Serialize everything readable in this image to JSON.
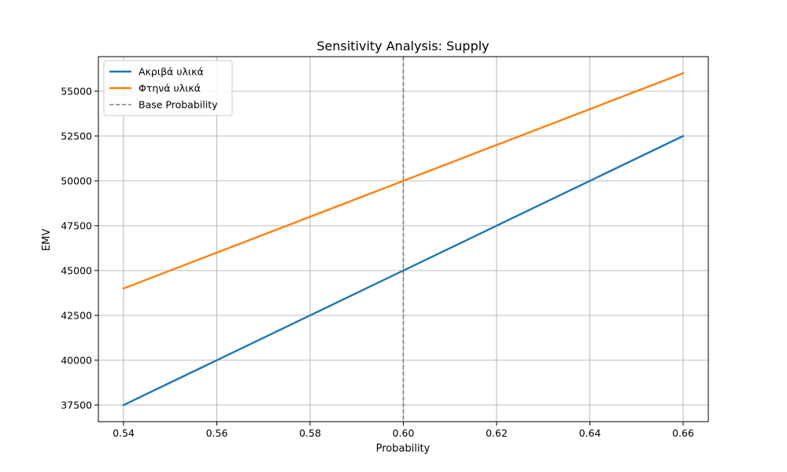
{
  "chart_data": {
    "type": "line",
    "title": "Sensitivity Analysis: Supply",
    "xlabel": "Probability",
    "ylabel": "EMV",
    "x": [
      0.54,
      0.56,
      0.58,
      0.6,
      0.62,
      0.64,
      0.66
    ],
    "xlim": [
      0.5346,
      0.6654
    ],
    "ylim": [
      36575,
      56925
    ],
    "xticks": [
      0.54,
      0.56,
      0.58,
      0.6,
      0.62,
      0.64,
      0.66
    ],
    "xtick_labels": [
      "0.54",
      "0.56",
      "0.58",
      "0.60",
      "0.62",
      "0.64",
      "0.66"
    ],
    "yticks": [
      37500,
      40000,
      42500,
      45000,
      47500,
      50000,
      52500,
      55000
    ],
    "ytick_labels": [
      "37500",
      "40000",
      "42500",
      "45000",
      "47500",
      "50000",
      "52500",
      "55000"
    ],
    "grid": true,
    "legend_position": "top-left",
    "series": [
      {
        "name": "Ακριβά υλικά",
        "color": "#1f77b4",
        "style": "solid",
        "values": [
          37500,
          40000,
          42500,
          45000,
          47500,
          50000,
          52500
        ]
      },
      {
        "name": "Φτηνά υλικά",
        "color": "#ff7f0e",
        "style": "solid",
        "values": [
          44000,
          46000,
          48000,
          50000,
          52000,
          54000,
          56000
        ]
      }
    ],
    "reference_line": {
      "name": "Base Probability",
      "x": 0.6,
      "color": "#808080",
      "style": "dashed"
    }
  }
}
